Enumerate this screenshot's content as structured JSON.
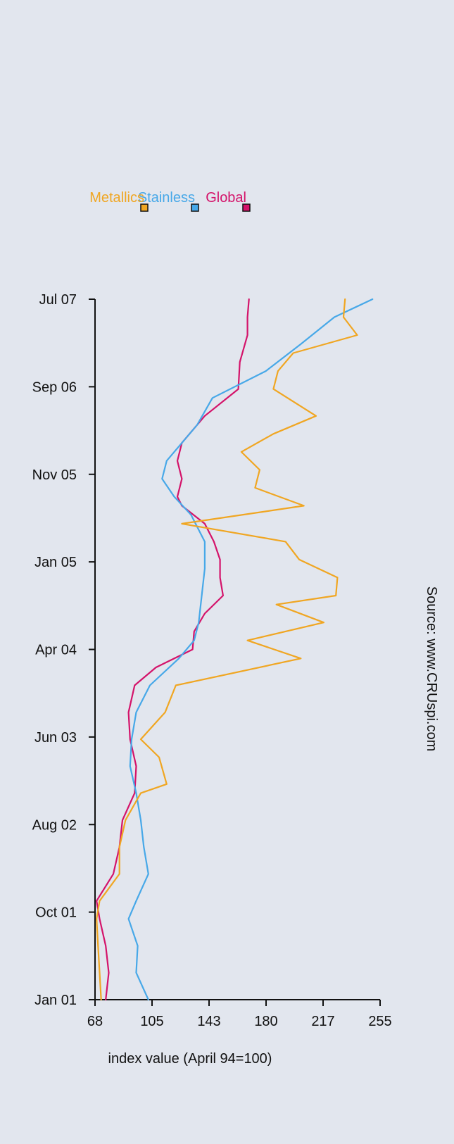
{
  "chart_data": {
    "type": "line",
    "orientation": "rotated 90 degrees clockwise",
    "xlabel": "",
    "ylabel": "index value (April 94=100)",
    "source": "Source:  www.CRUspi.com",
    "x_ticks": [
      "Jan 01",
      "Oct 01",
      "Aug 02",
      "Jun 03",
      "Apr 04",
      "Jan 05",
      "Nov 05",
      "Sep 06",
      "Jul 07"
    ],
    "y_ticks": [
      "68",
      "105",
      "143",
      "180",
      "217",
      "255"
    ],
    "ylim": [
      68,
      255
    ],
    "xlim": [
      "2001-01",
      "2007-07"
    ],
    "grid": false,
    "legend_position": "right",
    "series": [
      {
        "name": "Global",
        "color": "#d4136a",
        "x": [
          "2001-01",
          "2001-04",
          "2001-07",
          "2001-10",
          "2001-12",
          "2002-03",
          "2002-06",
          "2002-09",
          "2002-12",
          "2003-03",
          "2003-06",
          "2003-09",
          "2003-12",
          "2004-02",
          "2004-04",
          "2004-06",
          "2004-08",
          "2004-10",
          "2004-12",
          "2005-02",
          "2005-04",
          "2005-06",
          "2005-08",
          "2005-09",
          "2005-11",
          "2006-01",
          "2006-03",
          "2006-06",
          "2006-09",
          "2006-12",
          "2007-03",
          "2007-05",
          "2007-07"
        ],
        "values": [
          75,
          77,
          75,
          71,
          69,
          80,
          84,
          86,
          94,
          95,
          91,
          90,
          94,
          108,
          132,
          133,
          140,
          152,
          150,
          150,
          146,
          140,
          125,
          122,
          125,
          122,
          125,
          140,
          162,
          163,
          168,
          168,
          169
        ]
      },
      {
        "name": "Stainless",
        "color": "#47a8e8",
        "x": [
          "2001-01",
          "2001-04",
          "2001-07",
          "2001-10",
          "2001-12",
          "2002-03",
          "2002-06",
          "2002-09",
          "2002-12",
          "2003-03",
          "2003-06",
          "2003-09",
          "2003-12",
          "2004-03",
          "2004-05",
          "2004-07",
          "2004-10",
          "2005-01",
          "2005-04",
          "2005-07",
          "2005-09",
          "2005-11",
          "2006-01",
          "2006-05",
          "2006-08",
          "2006-11",
          "2007-02",
          "2007-05",
          "2007-07"
        ],
        "values": [
          103,
          95,
          96,
          90,
          95,
          103,
          100,
          98,
          95,
          91,
          92,
          95,
          104,
          123,
          133,
          136,
          138,
          140,
          140,
          131,
          120,
          112,
          115,
          135,
          145,
          180,
          203,
          225,
          250
        ]
      },
      {
        "name": "Metallics",
        "color": "#f0a622",
        "x": [
          "2001-01",
          "2001-04",
          "2001-07",
          "2001-10",
          "2001-12",
          "2002-03",
          "2002-06",
          "2002-09",
          "2002-12",
          "2003-01",
          "2003-04",
          "2003-06",
          "2003-09",
          "2003-12",
          "2004-03",
          "2004-05",
          "2004-07",
          "2004-09",
          "2004-10",
          "2004-12",
          "2005-02",
          "2005-04",
          "2005-06",
          "2005-08",
          "2005-10",
          "2005-12",
          "2006-02",
          "2006-04",
          "2006-06",
          "2006-09",
          "2006-11",
          "2007-01",
          "2007-03",
          "2007-05",
          "2007-07"
        ],
        "values": [
          72,
          71,
          70,
          69,
          71,
          84,
          84,
          88,
          98,
          115,
          110,
          98,
          114,
          121,
          203,
          168,
          218,
          187,
          226,
          227,
          202,
          193,
          125,
          205,
          173,
          176,
          164,
          185,
          213,
          185,
          188,
          198,
          240,
          231,
          232
        ]
      }
    ]
  }
}
